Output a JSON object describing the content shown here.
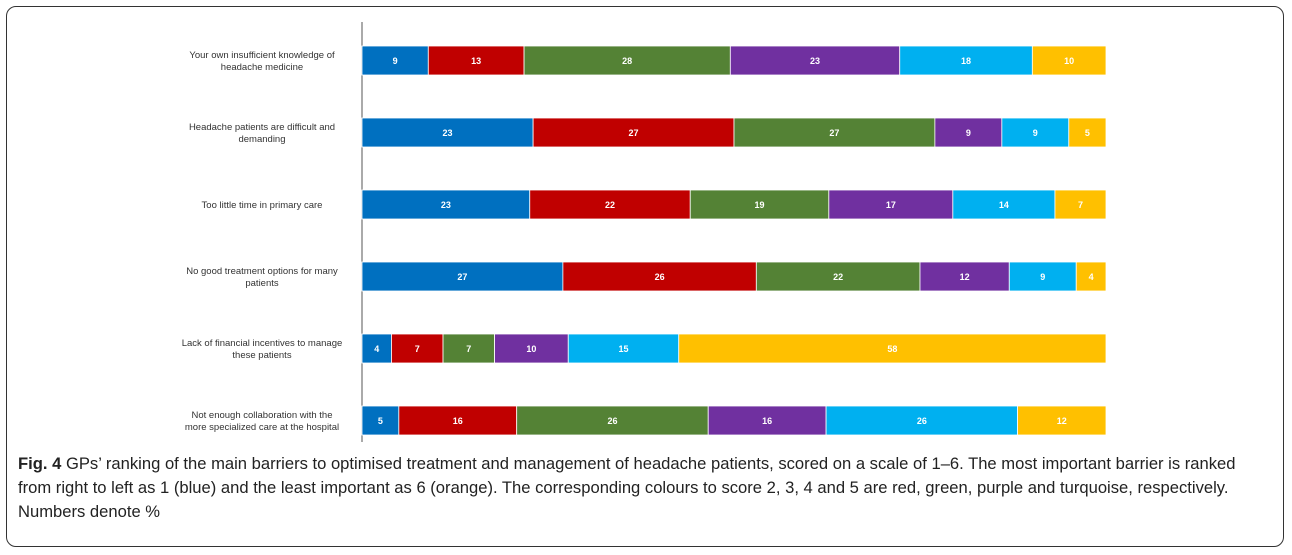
{
  "chart_data": {
    "type": "bar",
    "stacked": true,
    "orientation": "horizontal",
    "categories": [
      [
        "Your own insufficient knowledge of",
        "headache medicine"
      ],
      [
        "Headache patients are difficult and",
        "demanding"
      ],
      [
        "Too little time in primary care"
      ],
      [
        "No good treatment options for many",
        "patients"
      ],
      [
        "Lack of financial incentives to manage",
        "these patients"
      ],
      [
        "Not enough collaboration with the",
        "more specialized care at the hospital"
      ]
    ],
    "series": [
      {
        "color": "#0070c0",
        "values": [
          9,
          23,
          23,
          27,
          4,
          5
        ]
      },
      {
        "color": "#c00000",
        "values": [
          13,
          27,
          22,
          26,
          7,
          16
        ]
      },
      {
        "color": "#548235",
        "values": [
          28,
          27,
          19,
          22,
          7,
          26
        ]
      },
      {
        "color": "#7030a0",
        "values": [
          23,
          9,
          17,
          12,
          10,
          16
        ]
      },
      {
        "color": "#00b0f0",
        "values": [
          18,
          9,
          14,
          9,
          15,
          26
        ]
      },
      {
        "color": "#ffc000",
        "values": [
          10,
          5,
          7,
          4,
          58,
          12
        ]
      }
    ],
    "data_labels": true,
    "grid": false
  },
  "caption": {
    "lead": "Fig. 4",
    "text": " GPs’ ranking of the main barriers to optimised treatment and management of headache patients, scored on a scale of 1–6. The most important barrier is ranked from right to left as 1 (blue) and the least important as 6 (orange). The corresponding colours to score 2, 3, 4 and 5 are red, green, purple and turquoise, respectively. Numbers denote %"
  }
}
